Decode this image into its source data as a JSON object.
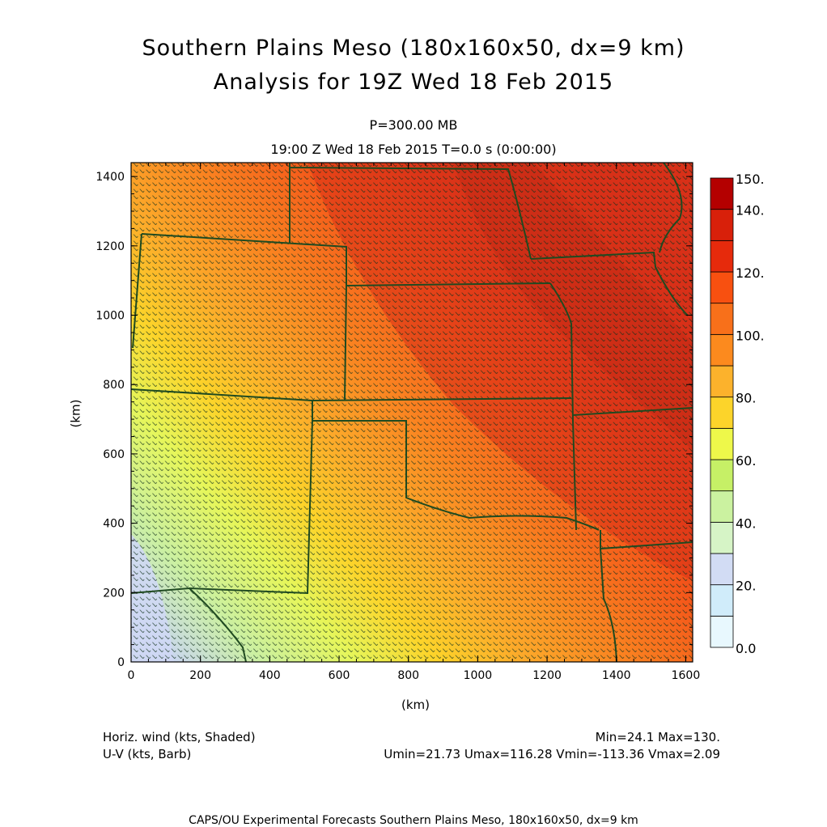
{
  "title": {
    "line1": "Southern Plains Meso (180x160x50, dx=9 km)",
    "line2": "Analysis for 19Z Wed 18 Feb 2015"
  },
  "subtitle": {
    "level": "P=300.00 MB",
    "time": "19:00 Z Wed 18 Feb 2015    T=0.0 s (0:00:00)"
  },
  "map": {
    "x_axis_label": "(km)",
    "y_axis_label": "(km)",
    "x_range_km": [
      0,
      1620
    ],
    "y_range_km": [
      0,
      1440
    ],
    "x_ticks": [
      "0",
      "200",
      "400",
      "600",
      "800",
      "1000",
      "1200",
      "1400",
      "1600"
    ],
    "y_ticks": [
      "0",
      "200",
      "400",
      "600",
      "800",
      "1000",
      "1200",
      "1400"
    ],
    "colorbar_labels": [
      "150.",
      "140.",
      "120.",
      "100.",
      "80.",
      "60.",
      "40.",
      "20.",
      "0.0"
    ],
    "colorbar_colors": [
      "#e8f8fe",
      "#d0ecfa",
      "#d2dcf4",
      "#d6f4c6",
      "#cbf2a0",
      "#c6f066",
      "#eef84a",
      "#fcd42a",
      "#fcb22c",
      "#fc8a1e",
      "#f8701a",
      "#f85010",
      "#e62a0c",
      "#d8200a",
      "#b40000"
    ],
    "colorbar_range": [
      0,
      150
    ],
    "boundary_color": "#1f4a20",
    "barb_color": "#10301a"
  },
  "legend": {
    "left_line1": "Horiz. wind (kts, Shaded)",
    "left_line2": "U-V (kts, Barb)",
    "right_line1": "Min=24.1 Max=130.",
    "right_line2": "Umin=21.73 Umax=116.28 Vmin=-113.36 Vmax=2.09"
  },
  "footer": "CAPS/OU Experimental Forecasts  Southern Plains Meso, 180x160x50, dx=9 km"
}
